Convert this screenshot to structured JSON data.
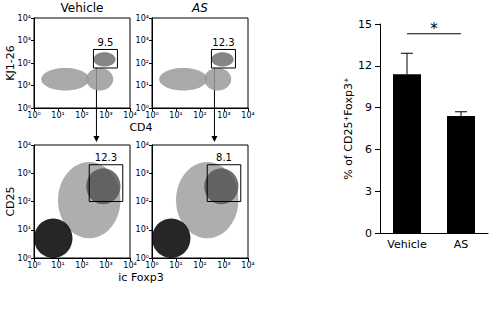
{
  "chart_data": [
    {
      "type": "gate_plot",
      "title": "Vehicle",
      "xlabel": "CD4",
      "ylabel": "KJ1-26",
      "log": true,
      "xlim": [
        1,
        10000
      ],
      "ylim": [
        1,
        10000
      ],
      "xticks": [
        {
          "value": 1,
          "label": "10⁰"
        },
        {
          "value": 10,
          "label": "10¹"
        },
        {
          "value": 100,
          "label": "10²"
        },
        {
          "value": 1000,
          "label": "10³"
        },
        {
          "value": 10000,
          "label": "10⁴"
        }
      ],
      "yticks": [
        {
          "value": 1,
          "label": "10⁰"
        },
        {
          "value": 10,
          "label": "10¹"
        },
        {
          "value": 100,
          "label": "10²"
        },
        {
          "value": 1000,
          "label": "10³"
        },
        {
          "value": 10000,
          "label": "10⁴"
        }
      ],
      "populations": [
        {
          "x": [
            2,
            200
          ],
          "y": [
            6,
            60
          ],
          "color": "#9a9a9a"
        },
        {
          "x": [
            150,
            2000
          ],
          "y": [
            6,
            60
          ],
          "color": "#9a9a9a"
        },
        {
          "x": [
            300,
            2500
          ],
          "y": [
            70,
            300
          ],
          "color": "#707070"
        }
      ],
      "gate": {
        "x": [
          300,
          3000
        ],
        "y": [
          60,
          400
        ],
        "value": 9.5
      }
    },
    {
      "type": "gate_plot",
      "title": "AS",
      "log": true,
      "xlim": [
        1,
        10000
      ],
      "ylim": [
        1,
        10000
      ],
      "xticks": [
        {
          "value": 1,
          "label": "10⁰"
        },
        {
          "value": 10,
          "label": "10¹"
        },
        {
          "value": 100,
          "label": "10²"
        },
        {
          "value": 1000,
          "label": "10³"
        },
        {
          "value": 10000,
          "label": "10⁴"
        }
      ],
      "yticks": [
        {
          "value": 1,
          "label": "10⁰"
        },
        {
          "value": 10,
          "label": "10¹"
        },
        {
          "value": 100,
          "label": "10²"
        },
        {
          "value": 1000,
          "label": "10³"
        },
        {
          "value": 10000,
          "label": "10⁴"
        }
      ],
      "populations": [
        {
          "x": [
            2,
            200
          ],
          "y": [
            6,
            60
          ],
          "color": "#9a9a9a"
        },
        {
          "x": [
            150,
            2000
          ],
          "y": [
            6,
            60
          ],
          "color": "#9a9a9a"
        },
        {
          "x": [
            300,
            2500
          ],
          "y": [
            70,
            300
          ],
          "color": "#707070"
        }
      ],
      "gate": {
        "x": [
          300,
          3000
        ],
        "y": [
          60,
          400
        ],
        "value": 12.3
      }
    },
    {
      "type": "gate_plot",
      "xlabel": "ic Foxp3",
      "ylabel": "CD25",
      "log": true,
      "xlim": [
        1,
        10000
      ],
      "ylim": [
        1,
        10000
      ],
      "xticks": [
        {
          "value": 1,
          "label": "10⁰"
        },
        {
          "value": 10,
          "label": "10¹"
        },
        {
          "value": 100,
          "label": "10²"
        },
        {
          "value": 1000,
          "label": "10³"
        },
        {
          "value": 10000,
          "label": "10⁴"
        }
      ],
      "yticks": [
        {
          "value": 1,
          "label": "10⁰"
        },
        {
          "value": 10,
          "label": "10¹"
        },
        {
          "value": 100,
          "label": "10²"
        },
        {
          "value": 1000,
          "label": "10³"
        },
        {
          "value": 10000,
          "label": "10⁴"
        }
      ],
      "populations": [
        {
          "x": [
            10,
            4000
          ],
          "y": [
            5,
            2500
          ],
          "color": "#a0a0a0"
        },
        {
          "x": [
            150,
            4000
          ],
          "y": [
            80,
            1500
          ],
          "color": "#555555"
        },
        {
          "x": [
            1,
            40
          ],
          "y": [
            1,
            25
          ],
          "color": "#000000"
        }
      ],
      "gate": {
        "x": [
          200,
          5000
        ],
        "y": [
          100,
          2000
        ],
        "value": 12.3
      }
    },
    {
      "type": "gate_plot",
      "log": true,
      "xlim": [
        1,
        10000
      ],
      "ylim": [
        1,
        10000
      ],
      "xticks": [
        {
          "value": 1,
          "label": "10⁰"
        },
        {
          "value": 10,
          "label": "10¹"
        },
        {
          "value": 100,
          "label": "10²"
        },
        {
          "value": 1000,
          "label": "10³"
        },
        {
          "value": 10000,
          "label": "10⁴"
        }
      ],
      "yticks": [
        {
          "value": 1,
          "label": "10⁰"
        },
        {
          "value": 10,
          "label": "10¹"
        },
        {
          "value": 100,
          "label": "10²"
        },
        {
          "value": 1000,
          "label": "10³"
        },
        {
          "value": 10000,
          "label": "10⁴"
        }
      ],
      "populations": [
        {
          "x": [
            10,
            4000
          ],
          "y": [
            5,
            2500
          ],
          "color": "#a0a0a0"
        },
        {
          "x": [
            150,
            4000
          ],
          "y": [
            80,
            1500
          ],
          "color": "#555555"
        },
        {
          "x": [
            1,
            40
          ],
          "y": [
            1,
            25
          ],
          "color": "#000000"
        }
      ],
      "gate": {
        "x": [
          200,
          5000
        ],
        "y": [
          100,
          2000
        ],
        "value": 8.1
      }
    },
    {
      "type": "bar",
      "categories": [
        "Vehicle",
        "AS"
      ],
      "values": [
        11.4,
        8.4
      ],
      "errors": [
        1.5,
        0.3
      ],
      "color": "#000000",
      "ylabel": "% of CD25⁺Foxp3⁺",
      "ylim": [
        0,
        15
      ],
      "yticks": [
        0,
        3,
        6,
        9,
        12,
        15
      ],
      "grid": false,
      "significance": {
        "from": "Vehicle",
        "to": "AS",
        "y": 14.3,
        "label": "*"
      }
    }
  ]
}
